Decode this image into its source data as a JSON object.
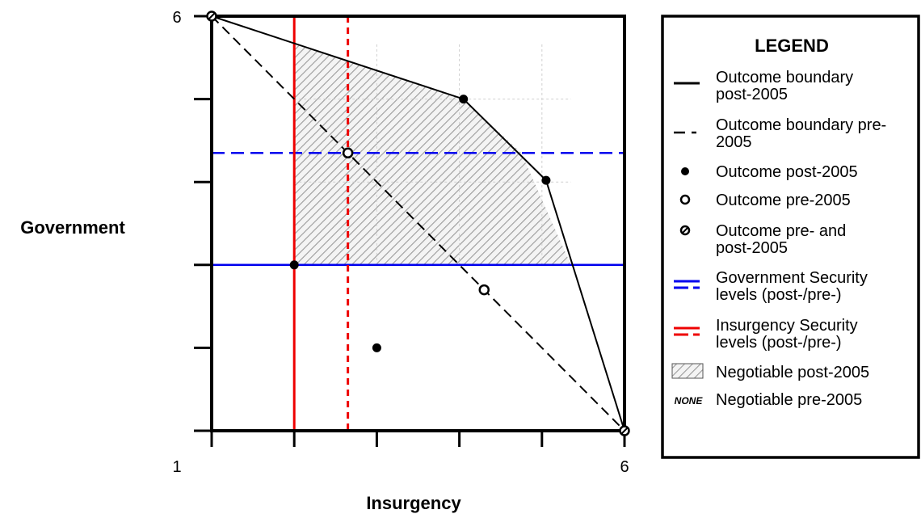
{
  "chart_data": {
    "type": "scatter",
    "xlabel": "Insurgency",
    "ylabel": "Government",
    "xlim": [
      1,
      6
    ],
    "ylim": [
      1,
      6
    ],
    "x_tick_labels": [
      "1",
      "6"
    ],
    "y_tick_labels": [
      "6"
    ],
    "outcome_boundary_post_2005": [
      [
        1,
        6
      ],
      [
        4.05,
        5.0
      ],
      [
        5.05,
        4.02
      ],
      [
        6,
        1
      ]
    ],
    "outcome_boundary_pre_2005": [
      [
        1,
        6
      ],
      [
        6,
        1
      ]
    ],
    "outcomes_post_2005": [
      [
        2,
        3
      ],
      [
        3,
        2
      ],
      [
        4.05,
        5.0
      ],
      [
        5.05,
        4.02
      ]
    ],
    "outcomes_pre_2005": [
      [
        2.65,
        4.35
      ],
      [
        4.3,
        2.7
      ]
    ],
    "outcomes_pre_and_post_2005": [
      [
        1,
        6
      ],
      [
        6,
        1
      ]
    ],
    "government_security_level_post": 3,
    "government_security_level_pre": 4.35,
    "insurgency_security_level_post": 2,
    "insurgency_security_level_pre": 2.65,
    "negotiable_post_2005_region": [
      [
        2,
        5.66
      ],
      [
        4.05,
        5.0
      ],
      [
        4.75,
        4.35
      ],
      [
        5.35,
        3
      ],
      [
        2,
        3
      ]
    ],
    "colors": {
      "government": "#0000ee",
      "insurgency": "#ee0000",
      "line": "#000000",
      "hatch": "#aaaaaa"
    }
  },
  "legend": {
    "title": "LEGEND",
    "items": [
      {
        "label_lines": [
          "Outcome boundary",
          "post-2005"
        ],
        "symbol": "solid-line-icon"
      },
      {
        "label_lines": [
          "Outcome boundary pre-",
          "2005"
        ],
        "symbol": "dashed-line-icon"
      },
      {
        "label_lines": [
          "Outcome post-2005"
        ],
        "symbol": "filled-dot-icon"
      },
      {
        "label_lines": [
          "Outcome pre-2005"
        ],
        "symbol": "open-dot-icon"
      },
      {
        "label_lines": [
          "Outcome pre- and",
          "post-2005"
        ],
        "symbol": "slashed-dot-icon"
      },
      {
        "label_lines": [
          "Government Security",
          "levels (post-/pre-)"
        ],
        "symbol": "blue-lines-icon"
      },
      {
        "label_lines": [
          "Insurgency Security",
          "levels (post-/pre-)"
        ],
        "symbol": "red-lines-icon"
      },
      {
        "label_lines": [
          "Negotiable post-2005"
        ],
        "symbol": "hatched-box-icon"
      },
      {
        "label_lines": [
          "Negotiable pre-2005"
        ],
        "symbol": "none-text",
        "symbol_text": "NONE"
      }
    ]
  }
}
